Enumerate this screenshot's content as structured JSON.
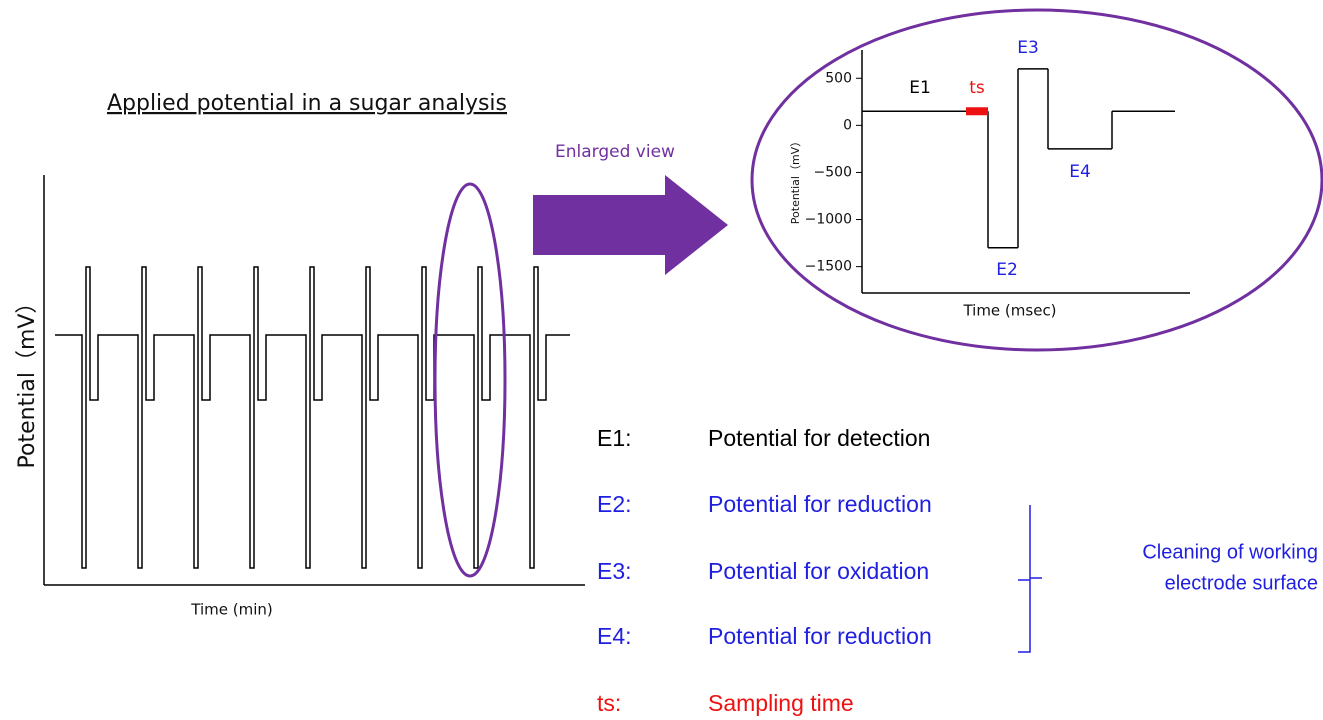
{
  "title": "Applied potential in a sugar analysis",
  "main_chart": {
    "y_label": "Potential（mV）",
    "x_label": "Time (min)"
  },
  "callout": "Enlarged view",
  "inset": {
    "y_label": "Potential（mV）",
    "x_label": "Time (msec)",
    "ylim": [
      -1780,
      800
    ],
    "yticks": [
      500,
      0,
      {
        "value": -500,
        "label": "−500"
      },
      {
        "value": -1000,
        "label": "−1000"
      },
      {
        "value": -1500,
        "label": "−1500"
      }
    ],
    "segments": [
      {
        "label": "E1",
        "value": 150,
        "color": "#000000"
      },
      {
        "label": "E2",
        "value": -1300,
        "color": "#1f1fe0"
      },
      {
        "label": "E3",
        "value": 600,
        "color": "#1f1fe0"
      },
      {
        "label": "E4",
        "value": -250,
        "color": "#1f1fe0"
      },
      {
        "value": 150
      }
    ],
    "ts_label": "ts",
    "ts_color": "#ee1111"
  },
  "legend": [
    {
      "key": "E1:",
      "text": "Potential for detection",
      "color": "#000000"
    },
    {
      "key": "E2:",
      "text": "Potential for reduction",
      "color": "#1f1fe0"
    },
    {
      "key": "E3:",
      "text": "Potential for oxidation",
      "color": "#1f1fe0"
    },
    {
      "key": "E4:",
      "text": "Potential for reduction",
      "color": "#1f1fe0"
    },
    {
      "key": "ts:",
      "text": "Sampling time",
      "color": "#ee1111"
    }
  ],
  "bracket_label": [
    "Cleaning of working",
    "electrode surface"
  ],
  "bracket_color": "#1f1fe0"
}
